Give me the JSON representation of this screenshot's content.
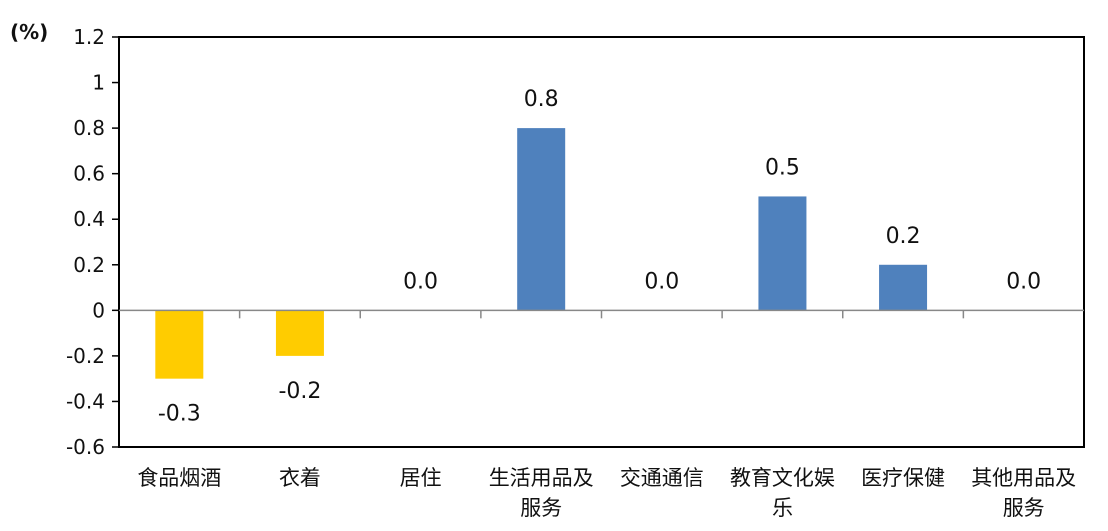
{
  "chart_data": {
    "type": "bar",
    "unit_label": "(%)",
    "categories": [
      [
        "食品烟酒"
      ],
      [
        "衣着"
      ],
      [
        "居住"
      ],
      [
        "生活用品及",
        "服务"
      ],
      [
        "交通通信"
      ],
      [
        "教育文化娱",
        "乐"
      ],
      [
        "医疗保健"
      ],
      [
        "其他用品及",
        "服务"
      ]
    ],
    "values": [
      -0.3,
      -0.2,
      0.0,
      0.8,
      0.0,
      0.5,
      0.2,
      0.0
    ],
    "value_labels": [
      "-0.3",
      "-0.2",
      "0.0",
      "0.8",
      "0.0",
      "0.5",
      "0.2",
      "0.0"
    ],
    "ylim": [
      -0.6,
      1.2
    ],
    "yticks": [
      {
        "value": 1.2,
        "label": "1.2"
      },
      {
        "value": 1.0,
        "label": "1"
      },
      {
        "value": 0.8,
        "label": "0.8"
      },
      {
        "value": 0.6,
        "label": "0.6"
      },
      {
        "value": 0.4,
        "label": "0.4"
      },
      {
        "value": 0.2,
        "label": "0.2"
      },
      {
        "value": 0.0,
        "label": "0"
      },
      {
        "value": -0.2,
        "label": "-0.2"
      },
      {
        "value": -0.4,
        "label": "-0.4"
      },
      {
        "value": -0.6,
        "label": "-0.6"
      }
    ],
    "colors": {
      "positive": "#4f81bd",
      "negative": "#ffcc00"
    },
    "grid": false
  }
}
